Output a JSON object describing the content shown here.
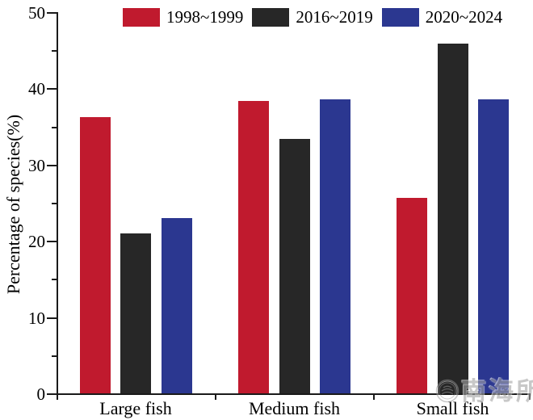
{
  "chart_data": {
    "type": "bar",
    "title": "",
    "categories": [
      "Large fish",
      "Medium fish",
      "Small fish"
    ],
    "series": [
      {
        "name": "1998~1999",
        "color": "#C01A2E",
        "values": [
          36.2,
          38.3,
          25.6
        ]
      },
      {
        "name": "2016~2019",
        "color": "#272727",
        "values": [
          21.0,
          33.4,
          45.9
        ]
      },
      {
        "name": "2020~2024",
        "color": "#2B3790",
        "values": [
          23.0,
          38.6,
          38.6
        ]
      }
    ],
    "xlabel": "",
    "ylabel": "Percentage of species(%)",
    "ylim": [
      0,
      50
    ],
    "yticks": [
      0,
      10,
      20,
      30,
      40,
      50
    ],
    "yticks_minor": [
      5,
      15,
      25,
      35,
      45
    ],
    "grid": false,
    "legend_position": "top",
    "axis_color": "#1a1a1a",
    "background_color": "#ffffff"
  },
  "watermark": {
    "text": "南海所"
  }
}
